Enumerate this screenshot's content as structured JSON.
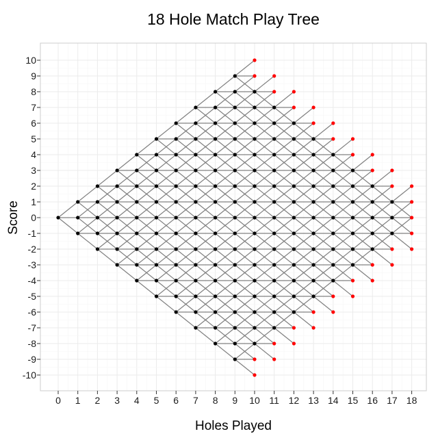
{
  "chart_data": {
    "type": "scatter",
    "title": "18 Hole Match Play Tree",
    "xlabel": "Holes Played",
    "ylabel": "Score",
    "xlim": [
      0,
      18
    ],
    "ylim": [
      -10,
      10
    ],
    "x_ticks": [
      "0",
      "1",
      "2",
      "3",
      "4",
      "5",
      "6",
      "7",
      "8",
      "9",
      "10",
      "11",
      "12",
      "13",
      "14",
      "15",
      "16",
      "17",
      "18"
    ],
    "y_ticks": [
      "-10",
      "-9",
      "-8",
      "-7",
      "-6",
      "-5",
      "-4",
      "-3",
      "-2",
      "-1",
      "0",
      "1",
      "2",
      "3",
      "4",
      "5",
      "6",
      "7",
      "8",
      "9",
      "10"
    ],
    "grid": true,
    "description_rule": "Nodes at (hole h, score s) for all |s| <= h, with same parity as h; match ends when |s| > 18 - h. Each live node connects to (h+1, s-1), (h+1, s), (h+1, s+1).",
    "colors": {
      "live_node": "#000000",
      "terminal_node": "#ff0000",
      "edge": "#808080",
      "grid": "#ebebeb",
      "panel_border": "#cccccc"
    }
  }
}
